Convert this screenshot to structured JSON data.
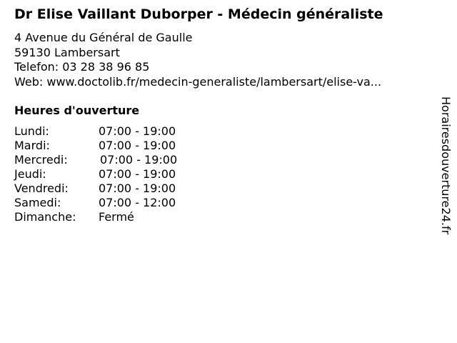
{
  "title": "Dr Elise Vaillant Duborper - Médecin généraliste",
  "address": {
    "street": "4 Avenue du Général de Gaulle",
    "city": "59130 Lambersart",
    "phone": "Telefon: 03 28 38 96 85",
    "web": "Web: www.doctolib.fr/medecin-generaliste/lambersart/elise-va..."
  },
  "hours_heading": "Heures d'ouverture",
  "hours": [
    {
      "day": "Lundi:",
      "time": "07:00 - 19:00"
    },
    {
      "day": "Mardi:",
      "time": "07:00 - 19:00"
    },
    {
      "day": "Mercredi:",
      "time": "07:00 - 19:00"
    },
    {
      "day": "Jeudi:",
      "time": "07:00 - 19:00"
    },
    {
      "day": "Vendredi:",
      "time": "07:00 - 19:00"
    },
    {
      "day": "Samedi:",
      "time": "07:00 - 12:00"
    },
    {
      "day": "Dimanche:",
      "time": "Fermé"
    }
  ],
  "watermark": "Horairesdouverture24.fr"
}
